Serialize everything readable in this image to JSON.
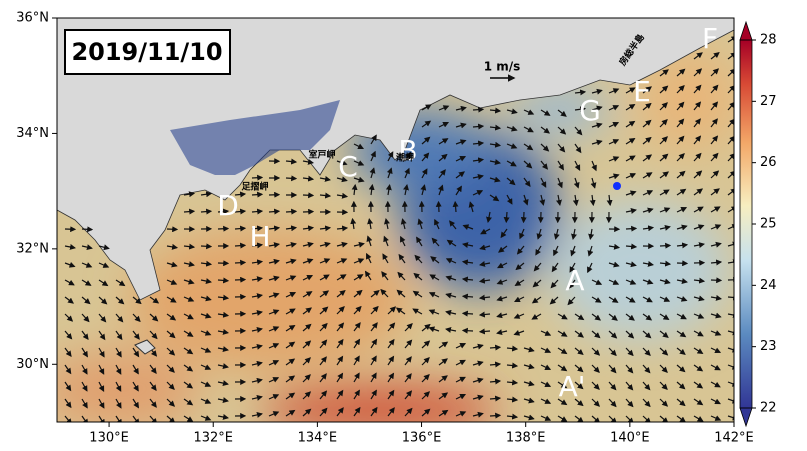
{
  "map": {
    "date_label": "2019/11/10",
    "scale_label": "1 m/s",
    "xticks": [
      {
        "value": 130,
        "label": "130°E"
      },
      {
        "value": 132,
        "label": "132°E"
      },
      {
        "value": 134,
        "label": "134°E"
      },
      {
        "value": 136,
        "label": "136°E"
      },
      {
        "value": 138,
        "label": "138°E"
      },
      {
        "value": 140,
        "label": "140°E"
      },
      {
        "value": 142,
        "label": "142°E"
      }
    ],
    "yticks": [
      {
        "value": 30,
        "label": "30°N"
      },
      {
        "value": 32,
        "label": "32°N"
      },
      {
        "value": 34,
        "label": "34°N"
      },
      {
        "value": 36,
        "label": "36°N"
      }
    ],
    "xlim": [
      129,
      142
    ],
    "ylim": [
      29,
      36
    ],
    "colorbar": {
      "lim": [
        22,
        28
      ],
      "ticks": [
        22,
        23,
        24,
        25,
        26,
        27,
        28
      ]
    },
    "annotations": [
      "A",
      "A'",
      "B",
      "C",
      "D",
      "E",
      "F",
      "G",
      "H"
    ],
    "place_names": [
      "室戸岬",
      "足摺岬",
      "潮岬",
      "房総半島"
    ]
  }
}
